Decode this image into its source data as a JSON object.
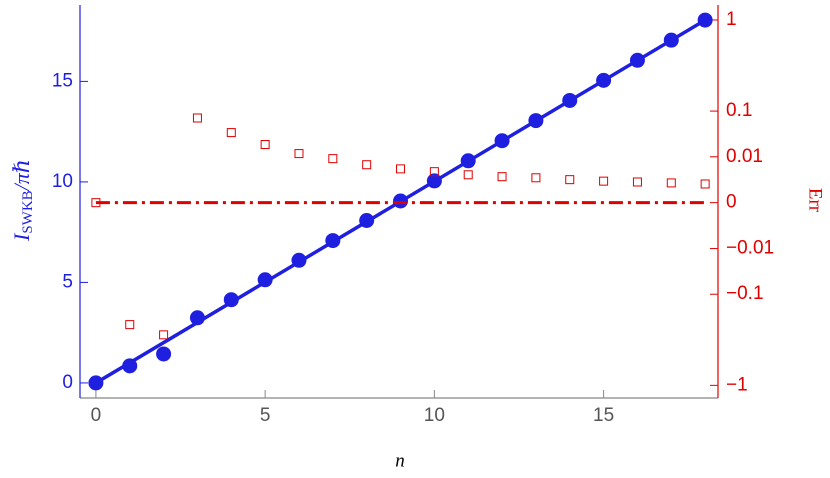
{
  "chart_data": {
    "type": "scatter",
    "x_label": "n",
    "y_label": {
      "symbol": "I",
      "subscript": "SWKB",
      "rest": "/πℏ"
    },
    "y2_label": "Err",
    "xlim": [
      -0.47,
      18.38
    ],
    "xticks": [
      0,
      5,
      10,
      15
    ],
    "ylim": [
      -0.75,
      18.8
    ],
    "yticks": [
      0,
      5,
      10,
      15
    ],
    "y2lim": [
      -1.25,
      1.3
    ],
    "y2scale": "power",
    "y2power": 0.3,
    "y2ticks": [
      1,
      0.1,
      0.01,
      0,
      {
        "value": -0.01,
        "label": "−0.01"
      },
      {
        "value": -0.1,
        "label": "−0.1"
      },
      {
        "value": -1,
        "label": "−1"
      }
    ],
    "left_color": "#1f1fe0",
    "right_color": "#e00000",
    "x": [
      0,
      1,
      2,
      3,
      4,
      5,
      6,
      7,
      8,
      9,
      10,
      11,
      12,
      13,
      14,
      15,
      16,
      17,
      18
    ],
    "series": [
      {
        "kind": "line",
        "color": "#1f1fe0",
        "x": [
          0,
          18
        ],
        "values": [
          0,
          18.05
        ]
      },
      {
        "kind": "points",
        "marker": "circle",
        "color": "#1f1fe0",
        "values": [
          0,
          0.85,
          1.44,
          3.24,
          4.14,
          5.13,
          6.1,
          7.08,
          8.08,
          9.05,
          10.05,
          11.05,
          12.05,
          13.05,
          14.05,
          15.05,
          16.05,
          17.05,
          18.05
        ]
      },
      {
        "kind": "line",
        "style": "dashdot",
        "axis": "y2",
        "color": "#e00000",
        "x": [
          0,
          18
        ],
        "values": [
          0,
          0
        ]
      },
      {
        "kind": "points",
        "marker": "square",
        "axis": "y2",
        "color": "#e00000",
        "values": [
          0,
          -0.26,
          -0.34,
          0.077,
          0.041,
          0.022,
          0.0125,
          0.0087,
          0.0053,
          0.0036,
          0.0027,
          0.0019,
          0.0015,
          0.0013,
          0.001,
          0.0008,
          0.0007,
          0.0006,
          0.0005
        ]
      }
    ]
  }
}
